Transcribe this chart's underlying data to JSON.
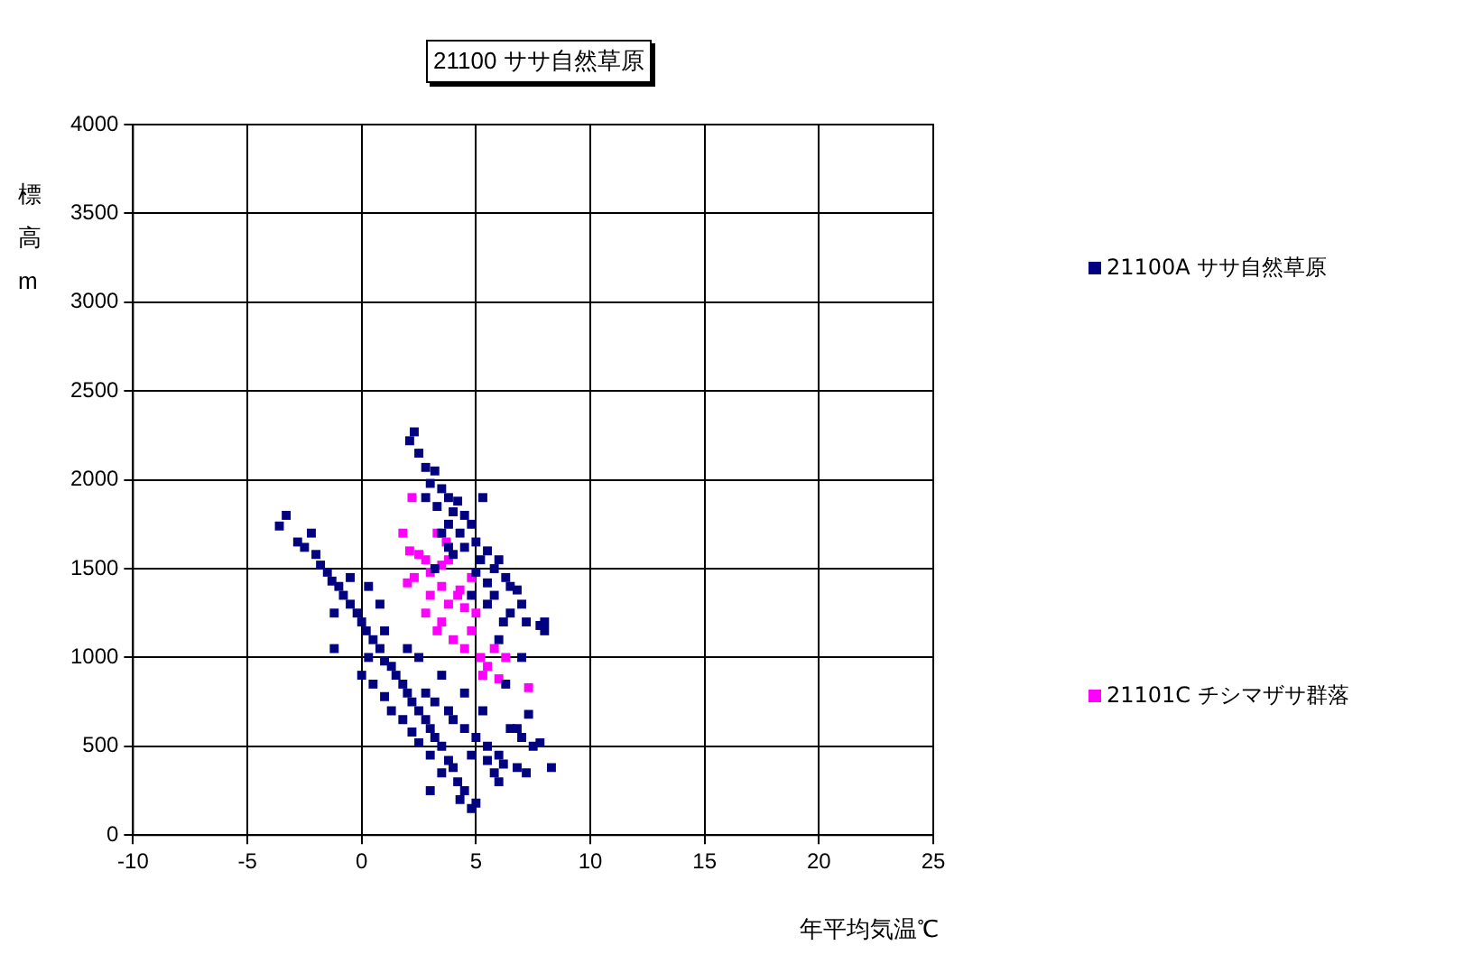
{
  "chart_data": {
    "type": "scatter",
    "title": "21100 ササ自然草原",
    "xlabel": "年平均気温℃",
    "ylabel": "標高m",
    "xlim": [
      -10,
      25
    ],
    "xticks": [
      -10,
      -5,
      0,
      5,
      10,
      15,
      20,
      25
    ],
    "ylim": [
      0,
      4000
    ],
    "yticks": [
      0,
      500,
      1000,
      1500,
      2000,
      2500,
      3000,
      3500,
      4000
    ],
    "grid": true,
    "legend": "right",
    "marker": "square",
    "series": [
      {
        "name": "21100A ササ自然草原",
        "color": "#000080",
        "x": [
          -3.6,
          -3.3,
          -2.8,
          -2.5,
          -2.2,
          -2,
          -1.8,
          -1.5,
          -1.3,
          -1,
          -0.8,
          -0.5,
          -1.2,
          -0.2,
          0,
          0.2,
          0.5,
          -1.2,
          0.3,
          0.8,
          1,
          1.3,
          0,
          0.5,
          1.5,
          1.8,
          2,
          1,
          1.3,
          2.2,
          2.5,
          1.8,
          2.8,
          3,
          2.2,
          3.2,
          2.5,
          3.5,
          3,
          3.8,
          4,
          3.5,
          4.2,
          4.5,
          4.3,
          4.8,
          5,
          2.8,
          3.2,
          3.8,
          4,
          4.5,
          5,
          4.8,
          5.5,
          6,
          6.2,
          5.8,
          6.8,
          7,
          7.5,
          7.8,
          8.3,
          7.2,
          6.5,
          5.3,
          4.5,
          3.5,
          2.5,
          0.8,
          0.3,
          -0.5,
          1,
          2,
          6.3,
          7.3,
          6.8,
          5.5,
          6,
          3,
          2.3,
          2.1,
          2.5,
          2.8,
          3.2,
          3,
          3.5,
          2.8,
          3.8,
          4.2,
          3.3,
          4,
          4.5,
          3.8,
          4.8,
          3.5,
          4.3,
          5,
          4.5,
          5.5,
          4,
          5.2,
          6,
          5.8,
          5,
          6.3,
          5.5,
          6.5,
          6.8,
          5.8,
          7,
          6.5,
          7.2,
          7.8,
          8,
          8,
          6.2,
          5.5,
          4.8,
          3.2,
          6,
          7,
          3.8,
          5.3
        ],
        "values": [
          1740,
          1800,
          1650,
          1620,
          1700,
          1580,
          1520,
          1480,
          1430,
          1400,
          1350,
          1300,
          1250,
          1250,
          1200,
          1150,
          1100,
          1050,
          1000,
          1050,
          980,
          950,
          900,
          850,
          900,
          850,
          800,
          780,
          700,
          750,
          700,
          650,
          650,
          600,
          580,
          550,
          520,
          500,
          450,
          420,
          380,
          350,
          300,
          250,
          200,
          150,
          180,
          800,
          750,
          700,
          650,
          600,
          550,
          450,
          500,
          450,
          400,
          350,
          380,
          550,
          500,
          520,
          380,
          350,
          600,
          700,
          800,
          900,
          1000,
          1300,
          1400,
          1450,
          1150,
          1050,
          850,
          680,
          600,
          420,
          300,
          250,
          2270,
          2220,
          2150,
          2070,
          2050,
          1980,
          1950,
          1900,
          1900,
          1880,
          1850,
          1820,
          1800,
          1750,
          1750,
          1700,
          1700,
          1650,
          1620,
          1600,
          1580,
          1550,
          1550,
          1500,
          1480,
          1450,
          1420,
          1400,
          1380,
          1350,
          1300,
          1250,
          1200,
          1180,
          1200,
          1150,
          1200,
          1300,
          1350,
          1500,
          1100,
          1000,
          1620,
          1900
        ]
      },
      {
        "name": "21101C チシマザサ群落",
        "color": "#ff00ff",
        "x": [
          1.8,
          2.2,
          2.1,
          2.5,
          2.8,
          2.3,
          3,
          3.5,
          3.3,
          3.7,
          3.8,
          3.5,
          3,
          3.8,
          4.2,
          4.5,
          2.8,
          3.5,
          4,
          4.8,
          5,
          4.5,
          5.2,
          5.5,
          5.3,
          6,
          5.8,
          6.3,
          7.3,
          4.3,
          4.8,
          3.3,
          2
        ],
        "values": [
          1700,
          1900,
          1600,
          1580,
          1550,
          1450,
          1480,
          1520,
          1700,
          1650,
          1550,
          1400,
          1350,
          1300,
          1350,
          1280,
          1250,
          1200,
          1100,
          1150,
          1250,
          1050,
          1000,
          950,
          900,
          880,
          1050,
          1000,
          830,
          1380,
          1450,
          1150,
          1420
        ]
      }
    ]
  }
}
